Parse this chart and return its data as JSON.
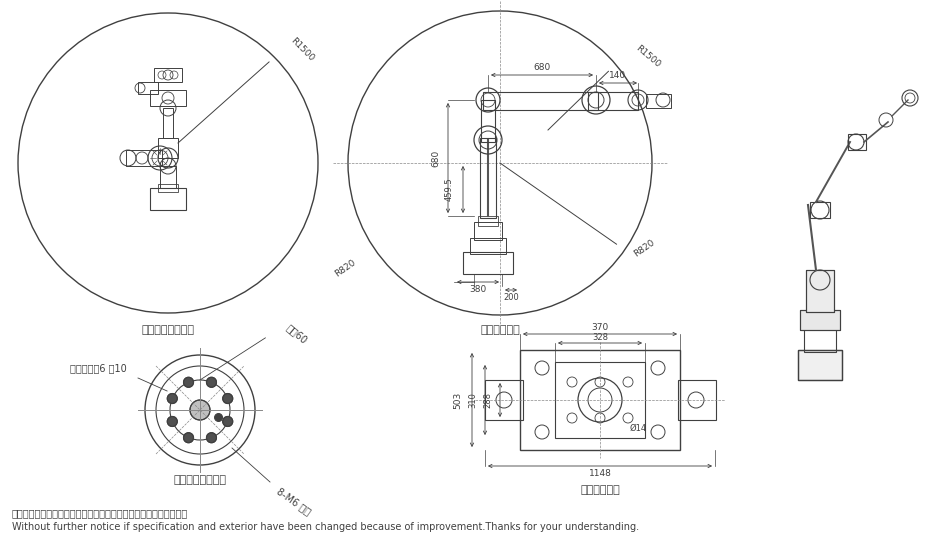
{
  "bg_color": "#ffffff",
  "line_color": "#404040",
  "dim_color": "#404040",
  "text_color": "#404040",
  "figsize": [
    9.3,
    5.49
  ],
  "dpi": 100,
  "footer_cn": "因改良等原因，规格及外观有所变更时，不再另行通知，敬请谅解。",
  "footer_en": "Without further notice if specification and exterior have been changed because of improvement.Thanks for your understanding.",
  "label_flange": "末端法兰安装尺尸",
  "label_base": "底座安装尺尸",
  "dim_r1500": "R1500",
  "dim_r820": "R820",
  "dim_680h": "680",
  "dim_140": "140",
  "dim_680v": "680",
  "dim_459": "459.5",
  "dim_380": "380",
  "dim_200": "200",
  "dim_r820b": "R820",
  "dim_370": "370",
  "dim_328": "328",
  "dim_503": "503",
  "dim_310": "310",
  "dim_288": "288",
  "dim_d14": "Ø14",
  "dim_1148": "1148",
  "pin_label": "销钉孔直径6 深10",
  "diam_label": "直径60",
  "m6_label": "8-M6 均布"
}
